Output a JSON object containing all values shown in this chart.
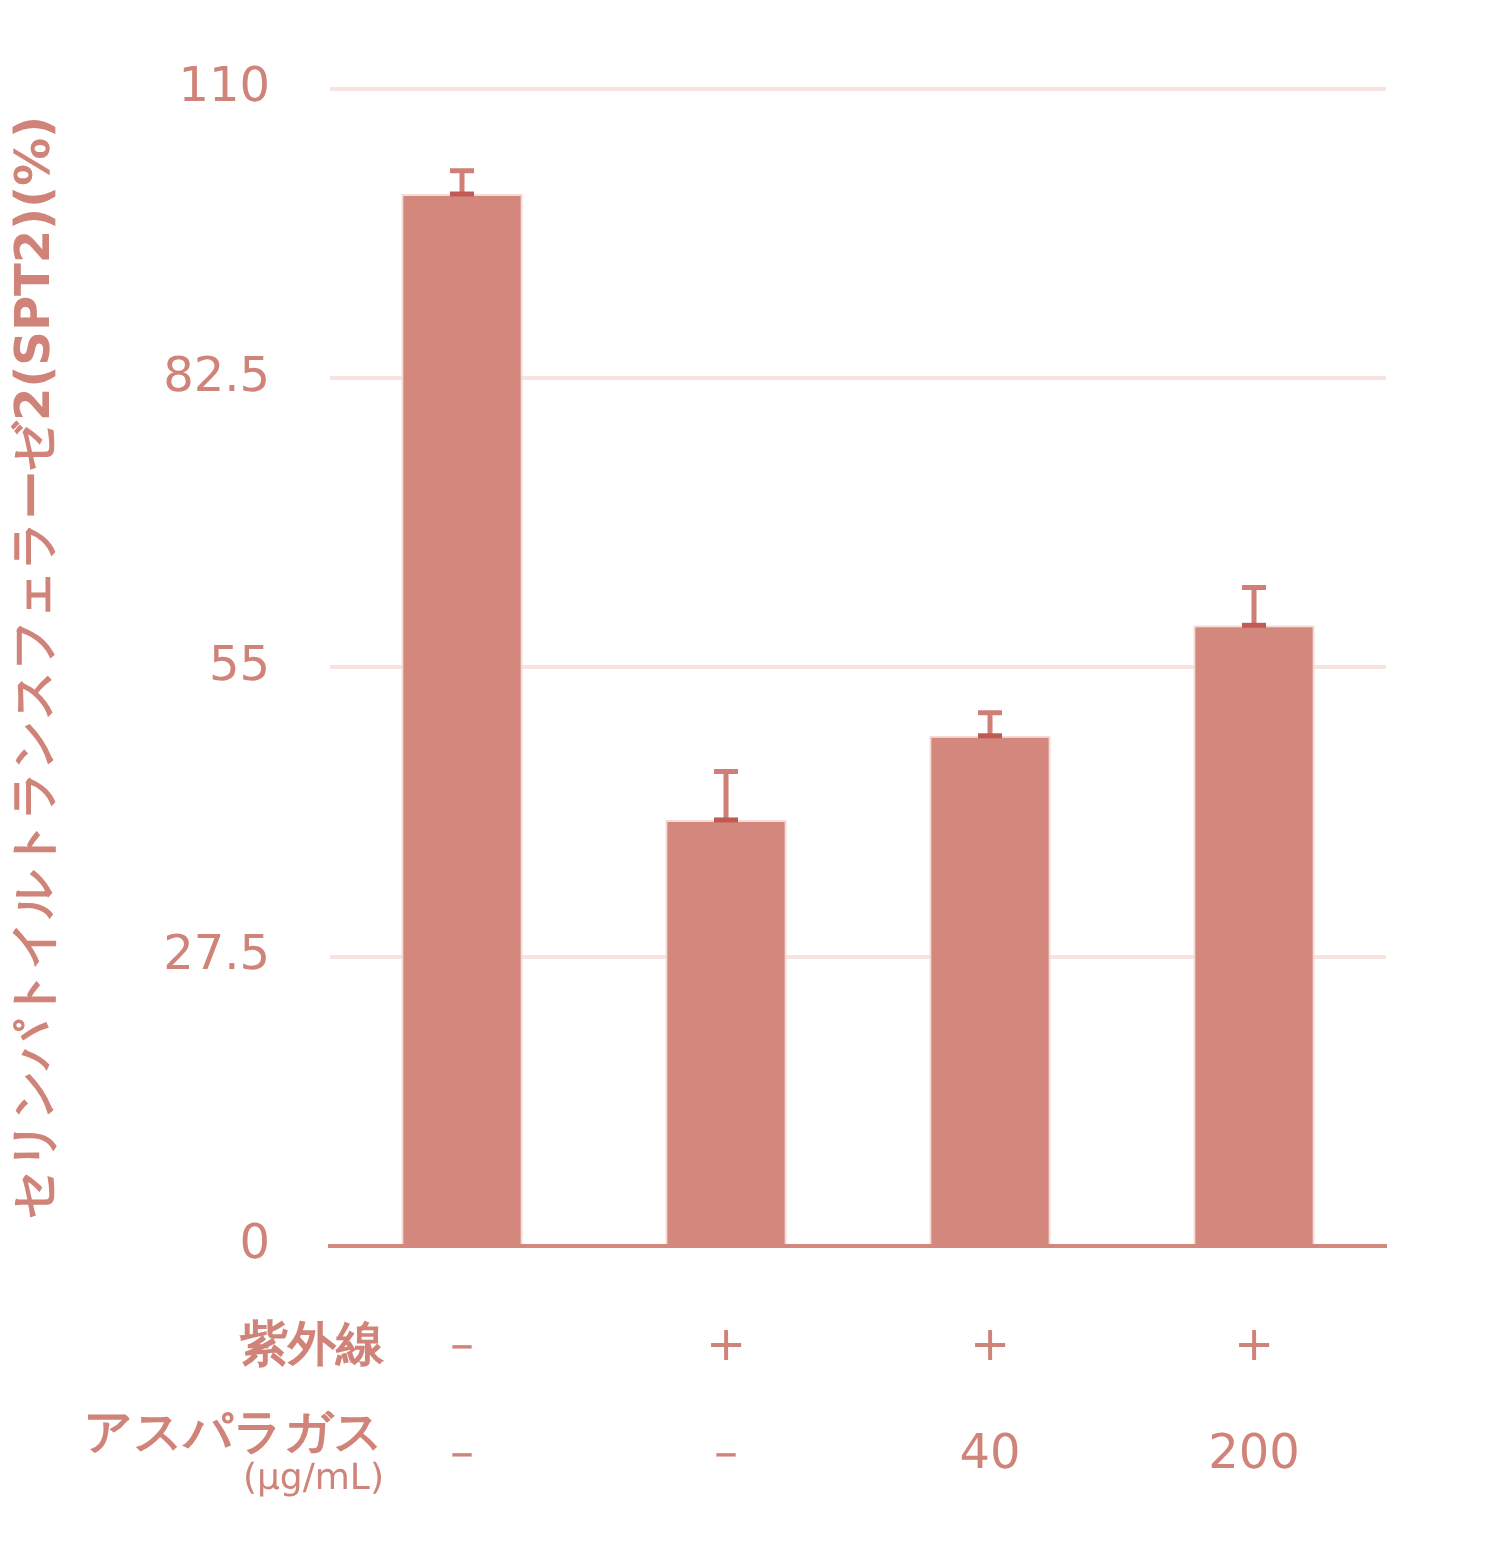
{
  "chart_data": {
    "type": "bar",
    "ylabel": "セリンパトイルトランスフェラーゼ2(SPT2)(%)",
    "categories": [
      "–\n–",
      "+\n–",
      "+\n40",
      "+\n200"
    ],
    "values": [
      100,
      40.5,
      48.5,
      59
    ],
    "errors": [
      [
        100,
        102.2
      ],
      [
        40.5,
        45.1
      ],
      [
        48.5,
        50.7
      ],
      [
        59,
        62.6
      ]
    ],
    "color": "#d4877c",
    "ylim": [
      0,
      110
    ],
    "yticks": [
      0,
      27.5,
      55,
      82.5,
      110
    ],
    "grid": "y",
    "legend": false,
    "annotations": [
      "紫外線",
      "アスパラガス\n(µg/mL)"
    ]
  }
}
